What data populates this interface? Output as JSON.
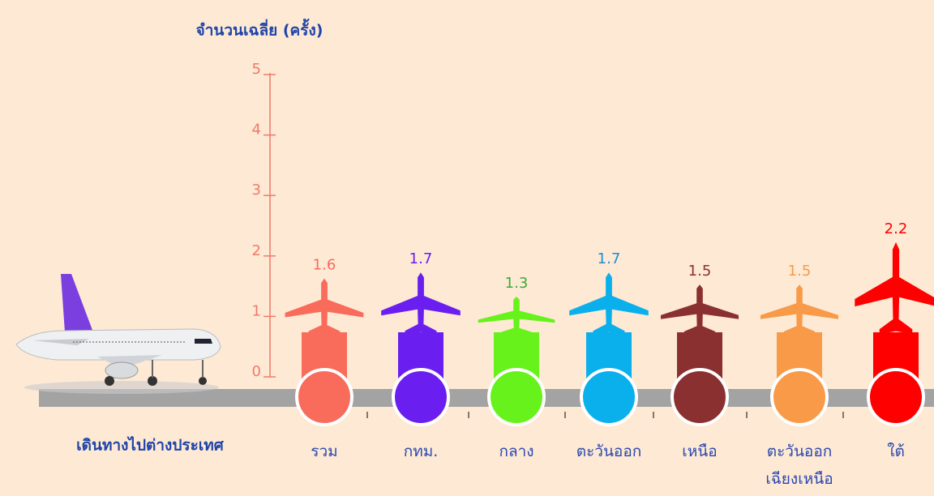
{
  "chart_data": {
    "type": "bar",
    "y_label": "จำนวนเฉลี่ย (ครั้ง)",
    "x_label": "เดินทางไปต่างประเทศ",
    "categories": [
      "รวม",
      "กทม.",
      "กลาง",
      "ตะวันออก",
      "เหนือ",
      "ตะวันออก\nเฉียงเหนือ",
      "ใต้"
    ],
    "values": [
      1.6,
      1.7,
      1.3,
      1.7,
      1.5,
      1.5,
      2.2
    ],
    "colors": [
      "#f96b5b",
      "#6a1ef0",
      "#66f21a",
      "#0ab0ec",
      "#8b3030",
      "#f89a48",
      "#ff0000"
    ],
    "label_colors": [
      "#f96b5b",
      "#6a1ef0",
      "#3aaa3a",
      "#1a8fd0",
      "#8b3030",
      "#f89a48",
      "#ff0000"
    ],
    "ylim": [
      0,
      5
    ],
    "yticks": [
      0,
      1,
      2,
      3,
      4,
      5
    ]
  }
}
